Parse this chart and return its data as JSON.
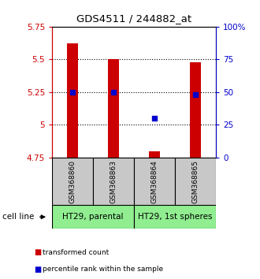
{
  "title": "GDS4511 / 244882_at",
  "samples": [
    "GSM368860",
    "GSM368863",
    "GSM368864",
    "GSM368865"
  ],
  "red_values": [
    5.62,
    5.5,
    4.8,
    5.48
  ],
  "blue_values": [
    0.5,
    0.5,
    0.3,
    0.48
  ],
  "baseline": 4.75,
  "ylim_left": [
    4.75,
    5.75
  ],
  "ylim_right": [
    0.0,
    1.0
  ],
  "yticks_left": [
    4.75,
    5.0,
    5.25,
    5.5,
    5.75
  ],
  "ytick_labels_left": [
    "4.75",
    "5",
    "5.25",
    "5.5",
    "5.75"
  ],
  "yticks_right": [
    0.0,
    0.25,
    0.5,
    0.75,
    1.0
  ],
  "ytick_labels_right": [
    "0",
    "25",
    "50",
    "75",
    "100%"
  ],
  "hlines": [
    5.0,
    5.25,
    5.5
  ],
  "cell_lines": [
    "HT29, parental",
    "HT29, 1st spheres"
  ],
  "cell_line_groups": [
    [
      0,
      1
    ],
    [
      2,
      3
    ]
  ],
  "sample_box_color": "#c8c8c8",
  "cell_line_color": "#90ee90",
  "bar_color": "#cc0000",
  "dot_color": "#0000cc",
  "left_axis_color": "#cc0000",
  "right_axis_color": "#0000cc",
  "legend_red": "transformed count",
  "legend_blue": "percentile rank within the sample",
  "cell_line_label": "cell line"
}
